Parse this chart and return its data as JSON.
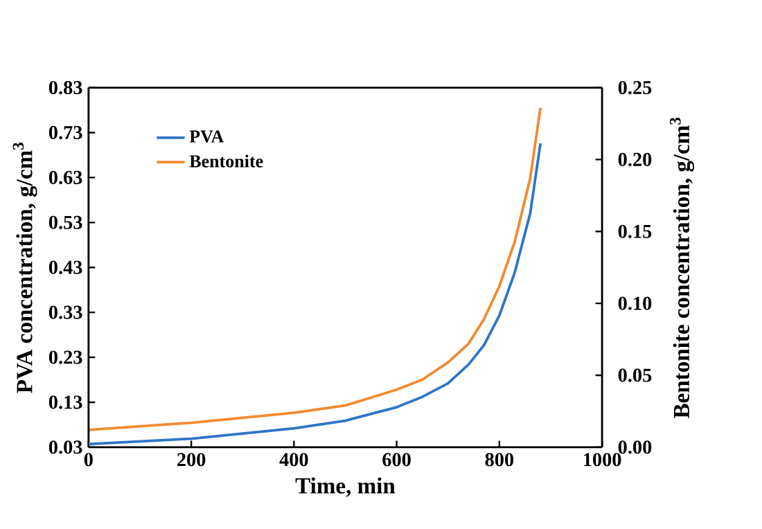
{
  "chart_data": {
    "type": "line",
    "xlabel": "Time, min",
    "ylabel": "PVA concentration, g/cm$^{3}$",
    "y2label": "Bentonite concentration, g/cm$^{3}$",
    "x": [
      0,
      200,
      400,
      500,
      600,
      650,
      700,
      740,
      770,
      800,
      830,
      860,
      880
    ],
    "series": [
      {
        "name": "PVA",
        "color": "#2e75c6",
        "values": [
          0.037,
          0.049,
          0.072,
          0.089,
          0.119,
          0.142,
          0.172,
          0.214,
          0.257,
          0.323,
          0.419,
          0.55,
          0.706
        ]
      },
      {
        "name": "Bentonite",
        "color": "#f28a30",
        "axis": "y2",
        "values": [
          0.012,
          0.017,
          0.024,
          0.029,
          0.04,
          0.047,
          0.059,
          0.072,
          0.089,
          0.112,
          0.143,
          0.187,
          0.236
        ]
      }
    ],
    "xlim": [
      0,
      1000
    ],
    "xticks": [
      0,
      200,
      400,
      600,
      800,
      1000
    ],
    "ylim": [
      0.03,
      0.83
    ],
    "yticks": [
      0.03,
      0.13,
      0.23,
      0.33,
      0.43,
      0.53,
      0.63,
      0.73,
      0.83
    ],
    "y2lim": [
      0,
      0.25
    ],
    "y2ticks": [
      {
        "value": 0,
        "label": "0.00"
      },
      {
        "value": 0.05,
        "label": "0.05"
      },
      {
        "value": 0.1,
        "label": "0.10"
      },
      {
        "value": 0.15,
        "label": "0.15"
      },
      {
        "value": 0.2,
        "label": "0.20"
      },
      {
        "value": 0.25,
        "label": "0.25"
      }
    ],
    "grid": false,
    "legend": "top left",
    "marker": "none",
    "line_style": "solid"
  }
}
